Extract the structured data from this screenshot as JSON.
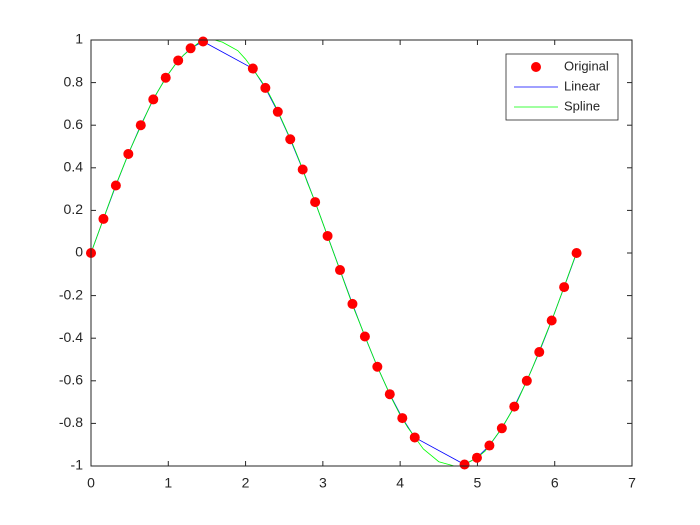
{
  "chart_data": {
    "type": "line",
    "xlim": [
      0,
      7
    ],
    "xticks": [
      0,
      1,
      2,
      3,
      4,
      5,
      6,
      7
    ],
    "ylim": [
      -1,
      1
    ],
    "yticks": [
      -1,
      -0.8,
      -0.6,
      -0.4,
      -0.2,
      0,
      0.2,
      0.4,
      0.6,
      0.8,
      1
    ],
    "grid": false,
    "legend_position": "northeast",
    "series": [
      {
        "name": "Original",
        "color": "#ff0000",
        "mode": "markers",
        "x": [
          0,
          0.161,
          0.322,
          0.483,
          0.644,
          0.806,
          0.967,
          1.128,
          1.289,
          1.45,
          2.094,
          2.256,
          2.417,
          2.578,
          2.739,
          2.9,
          3.061,
          3.222,
          3.383,
          3.544,
          3.705,
          3.866,
          4.028,
          4.189,
          4.833,
          4.994,
          5.155,
          5.316,
          5.477,
          5.639,
          5.8,
          5.961,
          6.122,
          6.283
        ],
        "values": [
          0,
          0.16,
          0.317,
          0.465,
          0.6,
          0.721,
          0.823,
          0.904,
          0.961,
          0.993,
          0.866,
          0.775,
          0.663,
          0.534,
          0.392,
          0.239,
          0.08,
          -0.08,
          -0.239,
          -0.392,
          -0.534,
          -0.663,
          -0.775,
          -0.866,
          -0.993,
          -0.961,
          -0.904,
          -0.823,
          -0.721,
          -0.6,
          -0.465,
          -0.317,
          -0.16,
          0
        ]
      },
      {
        "name": "Linear",
        "color": "#0000ff",
        "mode": "line",
        "x": [
          0,
          0.161,
          0.322,
          0.483,
          0.644,
          0.806,
          0.967,
          1.128,
          1.289,
          1.45,
          2.094,
          2.256,
          2.417,
          2.578,
          2.739,
          2.9,
          3.061,
          3.222,
          3.383,
          3.544,
          3.705,
          3.866,
          4.028,
          4.189,
          4.833,
          4.994,
          5.155,
          5.316,
          5.477,
          5.639,
          5.8,
          5.961,
          6.122,
          6.283
        ],
        "values": [
          0,
          0.16,
          0.317,
          0.465,
          0.6,
          0.721,
          0.823,
          0.904,
          0.961,
          0.993,
          0.866,
          0.775,
          0.663,
          0.534,
          0.392,
          0.239,
          0.08,
          -0.08,
          -0.239,
          -0.392,
          -0.534,
          -0.663,
          -0.775,
          -0.866,
          -0.993,
          -0.961,
          -0.904,
          -0.823,
          -0.721,
          -0.6,
          -0.465,
          -0.317,
          -0.16,
          0
        ]
      },
      {
        "name": "Spline",
        "color": "#00ff00",
        "mode": "line",
        "x": [
          0,
          0.1,
          0.2,
          0.3,
          0.4,
          0.5,
          0.6,
          0.7,
          0.8,
          0.9,
          1.0,
          1.1,
          1.2,
          1.3,
          1.4,
          1.5,
          1.6,
          1.7,
          1.8,
          1.9,
          2.0,
          2.1,
          2.2,
          2.3,
          2.4,
          2.5,
          2.6,
          2.7,
          2.8,
          2.9,
          3.0,
          3.1,
          3.2,
          3.3,
          3.4,
          3.5,
          3.6,
          3.7,
          3.8,
          3.9,
          4.0,
          4.1,
          4.2,
          4.3,
          4.4,
          4.5,
          4.6,
          4.7,
          4.8,
          4.9,
          5.0,
          5.1,
          5.2,
          5.3,
          5.4,
          5.5,
          5.6,
          5.7,
          5.8,
          5.9,
          6.0,
          6.1,
          6.2,
          6.28
        ],
        "values": [
          0,
          0.1,
          0.2,
          0.3,
          0.39,
          0.48,
          0.56,
          0.64,
          0.72,
          0.78,
          0.84,
          0.89,
          0.93,
          0.96,
          0.99,
          1.0,
          1.0,
          0.99,
          0.97,
          0.95,
          0.91,
          0.86,
          0.81,
          0.75,
          0.68,
          0.6,
          0.52,
          0.43,
          0.33,
          0.24,
          0.14,
          0.04,
          -0.06,
          -0.16,
          -0.26,
          -0.35,
          -0.44,
          -0.53,
          -0.61,
          -0.69,
          -0.76,
          -0.82,
          -0.87,
          -0.92,
          -0.95,
          -0.98,
          -0.99,
          -1.0,
          -1.0,
          -0.98,
          -0.96,
          -0.93,
          -0.88,
          -0.83,
          -0.77,
          -0.71,
          -0.63,
          -0.55,
          -0.46,
          -0.37,
          -0.28,
          -0.18,
          -0.08,
          0
        ]
      }
    ]
  }
}
